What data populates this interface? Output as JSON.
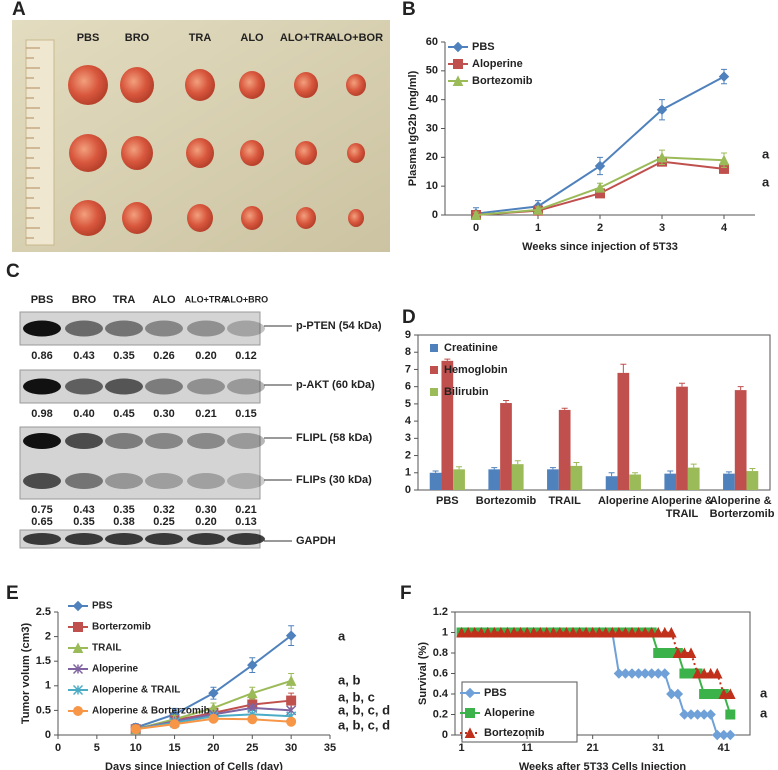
{
  "panel_labels": [
    "A",
    "B",
    "C",
    "D",
    "E",
    "F"
  ],
  "photo": {
    "labels": [
      "PBS",
      "BRO",
      "TRA",
      "ALO",
      "ALO+TRA",
      "ALO+BOR"
    ]
  },
  "blot": {
    "lanes": [
      "PBS",
      "BRO",
      "TRA",
      "ALO",
      "ALO+TRA",
      "ALO+BRO"
    ],
    "bands": [
      "p-PTEN (54 kDa)",
      "p-AKT (60 kDa)",
      "FLIPL (58 kDa)",
      "FLIPs (30 kDa)",
      "GAPDH"
    ],
    "values": [
      [
        "0.86",
        "0.43",
        "0.35",
        "0.26",
        "0.20",
        "0.12"
      ],
      [
        "0.98",
        "0.40",
        "0.45",
        "0.30",
        "0.21",
        "0.15"
      ],
      [
        "0.75",
        "0.43",
        "0.35",
        "0.32",
        "0.30",
        "0.21"
      ],
      [
        "0.65",
        "0.35",
        "0.38",
        "0.25",
        "0.20",
        "0.13"
      ]
    ]
  },
  "chart_data": [
    {
      "type": "line",
      "x_label": "Weeks since injection of 5T33",
      "y_label": "Plasma IgG2b (mg/ml)",
      "x": [
        0,
        1,
        2,
        3,
        4
      ],
      "xlim": [
        -0.5,
        4.5
      ],
      "xticks": [
        0,
        1,
        2,
        3,
        4
      ],
      "ylim": [
        0,
        60
      ],
      "yticks": [
        0,
        10,
        20,
        30,
        40,
        50,
        60
      ],
      "series": [
        {
          "name": "PBS",
          "color": "#4f81bd",
          "marker": "diamond",
          "values": [
            0.5,
            3,
            17,
            36.5,
            48
          ],
          "errors": [
            2,
            2,
            3,
            3.5,
            2.5
          ]
        },
        {
          "name": "Aloperine",
          "color": "#c0504d",
          "marker": "square",
          "values": [
            0,
            1.5,
            7.5,
            18.5,
            16
          ],
          "errors": [
            1,
            1,
            1,
            1,
            1.5
          ]
        },
        {
          "name": "Bortezomib",
          "color": "#9bbb59",
          "marker": "triangle",
          "values": [
            0,
            1.8,
            9.5,
            20,
            19
          ],
          "errors": [
            1,
            1,
            1.5,
            2.5,
            2.5
          ]
        }
      ],
      "annotations": [
        "a",
        "a"
      ]
    },
    {
      "type": "bar",
      "categories": [
        "PBS",
        "Bortezomib",
        "TRAIL",
        "Aloperine",
        "Aloperine & TRAIL",
        "Aloperine & Borterzomib"
      ],
      "ylim": [
        0,
        9
      ],
      "yticks": [
        0,
        1,
        2,
        3,
        4,
        5,
        6,
        7,
        8,
        9
      ],
      "series": [
        {
          "name": "Creatinine",
          "color": "#4f81bd",
          "values": [
            1,
            1.2,
            1.2,
            0.8,
            0.95,
            0.95
          ],
          "errors": [
            0.1,
            0.1,
            0.1,
            0.2,
            0.15,
            0.1
          ]
        },
        {
          "name": "Hemoglobin",
          "color": "#c0504d",
          "values": [
            7.5,
            5.05,
            4.65,
            6.8,
            6.0,
            5.8
          ],
          "errors": [
            0.1,
            0.15,
            0.1,
            0.5,
            0.2,
            0.2
          ]
        },
        {
          "name": "Bilirubin",
          "color": "#9bbb59",
          "values": [
            1.2,
            1.5,
            1.4,
            0.9,
            1.3,
            1.1
          ],
          "errors": [
            0.15,
            0.2,
            0.2,
            0.1,
            0.2,
            0.15
          ]
        }
      ]
    },
    {
      "type": "line",
      "x_label": "Days since Injection of Cells (day)",
      "y_label": "Tumor volum (cm3)",
      "x": [
        10,
        15,
        20,
        25,
        30
      ],
      "xlim": [
        0,
        35
      ],
      "xticks": [
        0,
        5,
        10,
        15,
        20,
        25,
        30,
        35
      ],
      "ylim": [
        0,
        2.5
      ],
      "yticks": [
        0,
        0.5,
        1,
        1.5,
        2,
        2.5
      ],
      "series": [
        {
          "name": "PBS",
          "color": "#4f81bd",
          "marker": "diamond",
          "values": [
            0.15,
            0.42,
            0.85,
            1.42,
            2.02
          ],
          "errors": [
            0.08,
            0.12,
            0.12,
            0.15,
            0.2
          ]
        },
        {
          "name": "Borterzomib",
          "color": "#c0504d",
          "marker": "square",
          "values": [
            0.12,
            0.3,
            0.45,
            0.62,
            0.7
          ],
          "errors": [
            0.05,
            0.06,
            0.1,
            0.12,
            0.15
          ]
        },
        {
          "name": "TRAIL",
          "color": "#9bbb59",
          "marker": "triangle",
          "values": [
            0.12,
            0.32,
            0.55,
            0.85,
            1.1
          ],
          "errors": [
            0.05,
            0.08,
            0.1,
            0.12,
            0.15
          ]
        },
        {
          "name": "Aloperine",
          "color": "#8064a2",
          "marker": "x",
          "values": [
            0.12,
            0.28,
            0.42,
            0.55,
            0.5
          ]
        },
        {
          "name": "Aloperine & TRAIL",
          "color": "#4bacc6",
          "marker": "x",
          "values": [
            0.12,
            0.25,
            0.38,
            0.42,
            0.38
          ]
        },
        {
          "name": "Aloperine & Borterzomib",
          "color": "#f79646",
          "marker": "circle",
          "values": [
            0.12,
            0.22,
            0.33,
            0.32,
            0.27
          ]
        }
      ],
      "annotations": [
        "a",
        "a, b",
        "a, b, c",
        "a, b, c, d",
        "a, b, c, d"
      ]
    },
    {
      "type": "line",
      "x_label": "Weeks after 5T33 Cells Injection",
      "y_label": "Survival (%)",
      "x": [
        1,
        2,
        3,
        4,
        5,
        6,
        7,
        8,
        9,
        10,
        11,
        12,
        13,
        14,
        15,
        16,
        17,
        18,
        19,
        20,
        21,
        22,
        23,
        24,
        25,
        26,
        27,
        28,
        29,
        30,
        31,
        32,
        33,
        34,
        35,
        36,
        37,
        38,
        39,
        40,
        41,
        42
      ],
      "xlim": [
        0,
        45
      ],
      "xticks": [
        1,
        11,
        21,
        31,
        41
      ],
      "ylim": [
        0,
        1.2
      ],
      "yticks": [
        0,
        0.2,
        0.4,
        0.6,
        0.8,
        1,
        1.2
      ],
      "series": [
        {
          "name": "PBS",
          "color": "#6fa0d8",
          "marker": "diamond",
          "values": [
            1,
            1,
            1,
            1,
            1,
            1,
            1,
            1,
            1,
            1,
            1,
            1,
            1,
            1,
            1,
            1,
            1,
            1,
            1,
            1,
            1,
            1,
            1,
            1,
            0.6,
            0.6,
            0.6,
            0.6,
            0.6,
            0.6,
            0.6,
            0.6,
            0.4,
            0.4,
            0.2,
            0.2,
            0.2,
            0.2,
            0.2,
            0,
            0,
            0
          ]
        },
        {
          "name": "Aloperine",
          "color": "#3cb34a",
          "marker": "square",
          "values": [
            1,
            1,
            1,
            1,
            1,
            1,
            1,
            1,
            1,
            1,
            1,
            1,
            1,
            1,
            1,
            1,
            1,
            1,
            1,
            1,
            1,
            1,
            1,
            1,
            1,
            1,
            1,
            1,
            1,
            1,
            0.8,
            0.8,
            0.8,
            0.8,
            0.6,
            0.6,
            0.6,
            0.4,
            0.4,
            0.4,
            0.4,
            0.2
          ]
        },
        {
          "name": "Bortezomib",
          "color": "#c0301a",
          "marker": "triangle",
          "line_style": "dotted",
          "values": [
            1,
            1,
            1,
            1,
            1,
            1,
            1,
            1,
            1,
            1,
            1,
            1,
            1,
            1,
            1,
            1,
            1,
            1,
            1,
            1,
            1,
            1,
            1,
            1,
            1,
            1,
            1,
            1,
            1,
            1,
            1,
            1,
            1,
            0.8,
            0.8,
            0.8,
            0.6,
            0.6,
            0.6,
            0.6,
            0.4,
            0.4
          ]
        }
      ],
      "annotations": [
        "a",
        "a"
      ]
    }
  ]
}
